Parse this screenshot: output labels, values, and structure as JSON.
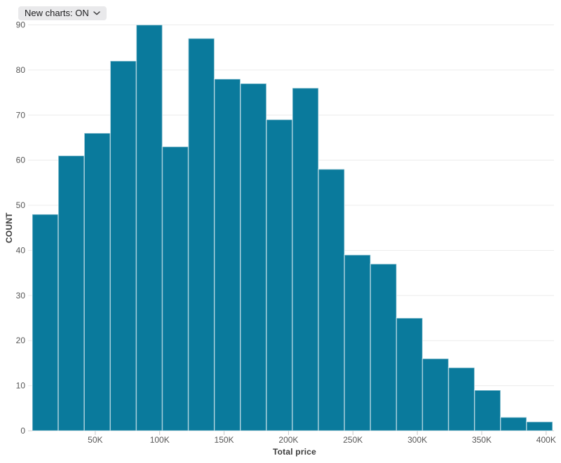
{
  "controls": {
    "new_charts_toggle": {
      "label": "New charts: ON",
      "state": "ON"
    }
  },
  "chart_data": {
    "type": "bar",
    "subtype": "histogram",
    "title": "",
    "xlabel": "Total price",
    "ylabel": "COUNT",
    "x_domain": [
      0,
      405000
    ],
    "ylim": [
      0,
      90
    ],
    "grid": "horizontal",
    "legend": "none",
    "bin_count": 20,
    "bin_width_value": 20250,
    "values": [
      48,
      61,
      66,
      82,
      90,
      63,
      87,
      78,
      77,
      69,
      76,
      58,
      39,
      37,
      25,
      16,
      14,
      9,
      3,
      2
    ],
    "x_ticks": [
      {
        "value": 50000,
        "label": "50K"
      },
      {
        "value": 100000,
        "label": "100K"
      },
      {
        "value": 150000,
        "label": "150K"
      },
      {
        "value": 200000,
        "label": "200K"
      },
      {
        "value": 250000,
        "label": "250K"
      },
      {
        "value": 300000,
        "label": "300K"
      },
      {
        "value": 350000,
        "label": "350K"
      },
      {
        "value": 400000,
        "label": "400K"
      }
    ],
    "y_ticks": [
      {
        "value": 0,
        "label": "0"
      },
      {
        "value": 10,
        "label": "10"
      },
      {
        "value": 20,
        "label": "20"
      },
      {
        "value": 30,
        "label": "30"
      },
      {
        "value": 40,
        "label": "40"
      },
      {
        "value": 50,
        "label": "50"
      },
      {
        "value": 60,
        "label": "60"
      },
      {
        "value": 70,
        "label": "70"
      },
      {
        "value": 80,
        "label": "80"
      },
      {
        "value": 90,
        "label": "90"
      }
    ],
    "colors": {
      "bar_fill": "#0a7a9c",
      "bar_edge": "rgba(255,255,255,0.5)",
      "gridline": "#ececec",
      "axis_line": "#cccccc",
      "tick_mark": "#c6c6c6",
      "tick_text": "#565656",
      "axis_title_text": "#3b3b3b"
    }
  }
}
